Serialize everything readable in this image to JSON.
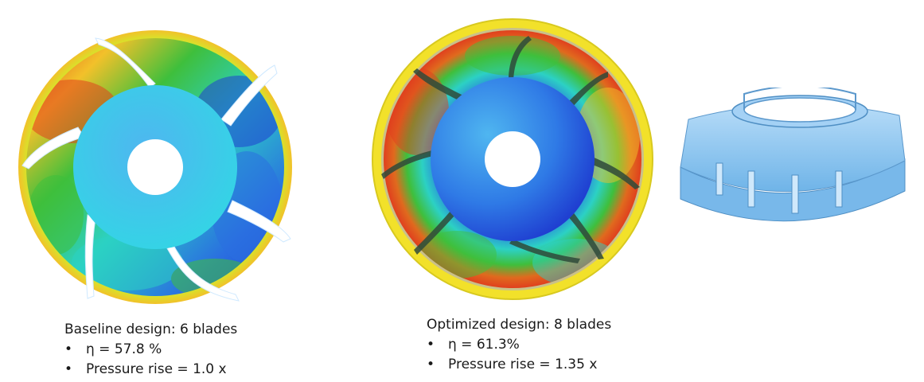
{
  "baseline": {
    "title": "Baseline design: 6 blades",
    "bullets": [
      {
        "symbol": "•",
        "text": "η = 57.8 %"
      },
      {
        "symbol": "•",
        "text": "Pressure rise = 1.0 x"
      }
    ]
  },
  "optimized": {
    "title": "Optimized design: 8 blades",
    "bullets": [
      {
        "symbol": "•",
        "text": "η = 61.3%"
      },
      {
        "symbol": "•",
        "text": "Pressure rise = 1.35 x"
      }
    ]
  },
  "colors": {
    "cfd_low": "#1f3fd1",
    "cfd_mid": "#2cd1c4",
    "cfd_green": "#3fbf3c",
    "cfd_yellow": "#f2e12a",
    "cfd_high": "#e0401e",
    "impeller_3d": "#8fc9f2"
  }
}
